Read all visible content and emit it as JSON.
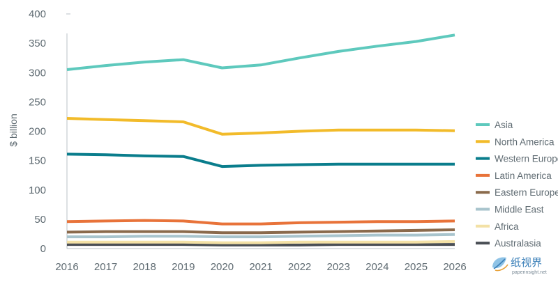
{
  "chart_data": {
    "type": "line",
    "ylabel": "$ billion",
    "xlabel": "",
    "x": [
      "2016",
      "2017",
      "2018",
      "2019",
      "2020",
      "2021",
      "2022",
      "2023",
      "2024",
      "2025",
      "2026"
    ],
    "ylim": [
      0,
      400
    ],
    "yticks": [
      0,
      50,
      100,
      150,
      200,
      250,
      300,
      350,
      400
    ],
    "yticks_labels": [
      "0",
      "50",
      "100",
      "150",
      "200",
      "250",
      "300",
      "350",
      "400"
    ],
    "grid": false,
    "legend_position": "right",
    "series": [
      {
        "name": "Asia",
        "color": "#5ec9bd",
        "values": [
          305,
          312,
          318,
          322,
          308,
          313,
          325,
          336,
          345,
          353,
          364
        ]
      },
      {
        "name": "North America",
        "color": "#f2bb2a",
        "values": [
          222,
          220,
          218,
          216,
          195,
          197,
          200,
          202,
          202,
          202,
          201
        ]
      },
      {
        "name": "Western Europe",
        "color": "#0a7d8c",
        "values": [
          161,
          160,
          158,
          157,
          140,
          142,
          143,
          144,
          144,
          144,
          144
        ]
      },
      {
        "name": "Latin America",
        "color": "#e8733a",
        "values": [
          46,
          47,
          48,
          47,
          42,
          42,
          44,
          45,
          46,
          46,
          47
        ]
      },
      {
        "name": "Eastern Europe",
        "color": "#8a6a4c",
        "values": [
          28,
          29,
          29,
          29,
          27,
          27,
          28,
          29,
          30,
          31,
          32
        ]
      },
      {
        "name": "Middle East",
        "color": "#a8c4cd",
        "values": [
          20,
          20,
          21,
          21,
          20,
          20,
          21,
          22,
          23,
          23,
          24
        ]
      },
      {
        "name": "Africa",
        "color": "#f3e1a6",
        "values": [
          11,
          11,
          11,
          11,
          10,
          10,
          11,
          11,
          11,
          11,
          12
        ]
      },
      {
        "name": "Australasia",
        "color": "#4a4f55",
        "values": [
          7,
          7,
          7,
          7,
          6,
          6,
          6,
          7,
          7,
          7,
          7
        ]
      }
    ]
  },
  "watermark": {
    "brand": "纸视界",
    "site": "paperinsight.net",
    "brand_color": "#3a7fb8"
  }
}
